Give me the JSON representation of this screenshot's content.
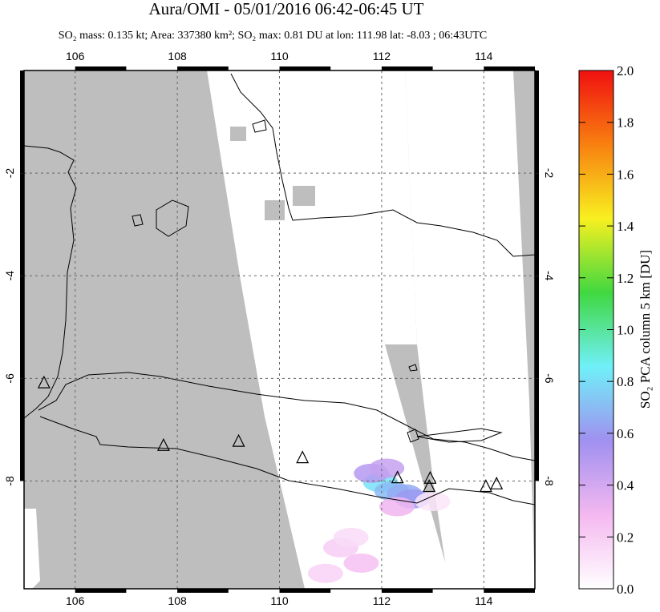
{
  "chart_data": {
    "type": "map",
    "title": "Aura/OMI - 05/01/2016 06:42-06:45 UT",
    "subtitle": "SO₂ mass: 0.135 kt; Area: 337380 km²; SO₂ max: 0.81 DU at lon: 111.98 lat: -8.03 ; 06:43UTC",
    "xlim": [
      105,
      115
    ],
    "ylim": [
      -10.1,
      0
    ],
    "xticks": [
      106,
      108,
      110,
      112,
      114
    ],
    "yticks": [
      -2,
      -4,
      -6,
      -8
    ],
    "grid": true,
    "colorbar": {
      "label": "SO₂ PCA column 5 km [DU]",
      "lim": [
        0,
        2
      ],
      "ticks": [
        {
          "value": 0,
          "label": "0.0"
        },
        {
          "value": 0.2,
          "label": "0.2"
        },
        {
          "value": 0.4,
          "label": "0.4"
        },
        {
          "value": 0.6,
          "label": "0.6"
        },
        {
          "value": 0.8,
          "label": "0.8"
        },
        {
          "value": 1,
          "label": "1.0"
        },
        {
          "value": 1.2,
          "label": "1.2"
        },
        {
          "value": 1.4,
          "label": "1.4"
        },
        {
          "value": 1.6,
          "label": "1.6"
        },
        {
          "value": 1.8,
          "label": "1.8"
        },
        {
          "value": 2,
          "label": "2.0"
        }
      ],
      "colors": [
        "#ffffff",
        "#f4b8f0",
        "#a090f0",
        "#70f0f8",
        "#40d840",
        "#f8f020",
        "#f88010",
        "#f01010"
      ]
    },
    "volcanoes": {
      "x": [
        105.39,
        107.73,
        109.2,
        110.45,
        112.31,
        112.95,
        112.93,
        114.04,
        114.25
      ],
      "y": [
        -6.09,
        -7.31,
        -7.23,
        -7.55,
        -7.94,
        -7.95,
        -8.11,
        -8.11,
        -8.06
      ]
    },
    "so2": {
      "x": [
        111.98,
        112.2,
        112.45,
        112.6,
        111.8,
        112.1,
        111.2,
        111.6,
        110.9,
        111.4,
        112.3,
        113.0
      ],
      "y": [
        -8.03,
        -8.2,
        -8.25,
        -8.35,
        -7.85,
        -7.75,
        -9.3,
        -9.6,
        -9.8,
        -9.1,
        -8.5,
        -8.4
      ],
      "values": [
        0.81,
        0.7,
        0.65,
        0.6,
        0.5,
        0.45,
        0.2,
        0.25,
        0.18,
        0.15,
        0.3,
        0.1
      ]
    }
  }
}
